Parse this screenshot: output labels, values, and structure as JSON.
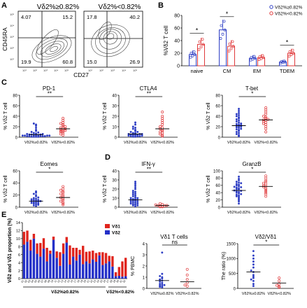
{
  "panel_labels": {
    "A": "A",
    "B": "B",
    "C": "C",
    "D": "D",
    "E": "E"
  },
  "flow": {
    "y_label": "CD45RA",
    "x_label": "CD27",
    "ticks": [
      "10¹",
      "10²",
      "10³",
      "10⁴",
      "10⁵"
    ],
    "plots": [
      {
        "title": "Vδ2%≥0.82%",
        "q_ul": "4.07",
        "q_ur": "15.2",
        "q_ll": "19.9",
        "q_lr": "60.8"
      },
      {
        "title": "Vδ2%<0.82%",
        "q_ul": "17.8",
        "q_ur": "40.2",
        "q_ll": "15.0",
        "q_lr": "26.9"
      }
    ]
  },
  "colors": {
    "high": "#2f3fc4",
    "low": "#e0393b",
    "bar_v1": "#e0251d",
    "bar_v2": "#2430c8"
  },
  "group_high": "Vδ2%≥0.82%",
  "group_low": "Vδ2%<0.82%",
  "sig": {
    "one": "*",
    "two": "**",
    "ns": "ns"
  },
  "chart_data": [
    {
      "type": "bar",
      "panel": "B",
      "ylabel": "%Vδ2 T cell",
      "ylim": [
        0,
        80
      ],
      "yticks": [
        0,
        20,
        40,
        60,
        80
      ],
      "categories": [
        "naive",
        "CM",
        "EM",
        "TDEM"
      ],
      "legend": [
        "Vδ2%≥0.82%",
        "Vδ2%<0.82%"
      ],
      "legend_position": "top-right",
      "series": [
        {
          "name": "Vδ2%≥0.82%",
          "values": [
            18,
            57,
            12,
            6
          ]
        },
        {
          "name": "Vδ2%<0.82%",
          "values": [
            34,
            31,
            13,
            20
          ]
        }
      ],
      "significance": [
        "*",
        "*",
        "",
        "*"
      ]
    },
    {
      "type": "scatter",
      "panel": "C",
      "title": "PD-1",
      "ylabel": "% Vδ2 T cell",
      "ylim": [
        0,
        80
      ],
      "yticks": [
        0,
        20,
        40,
        60,
        80
      ],
      "sig": "**",
      "groups": [
        {
          "name": "Vδ2%≥0.82%",
          "mean": 5,
          "values": [
            1,
            1,
            1,
            1,
            2,
            2,
            2,
            2,
            2,
            3,
            3,
            3,
            3,
            4,
            4,
            4,
            5,
            5,
            5,
            6,
            6,
            7,
            8,
            9,
            10,
            12,
            14,
            18,
            22,
            24,
            26
          ]
        },
        {
          "name": "Vδ2%<0.82%",
          "mean": 16,
          "values": [
            4,
            6,
            8,
            10,
            11,
            12,
            13,
            14,
            15,
            16,
            17,
            18,
            20,
            22,
            24,
            26,
            28,
            32,
            36
          ]
        }
      ]
    },
    {
      "type": "scatter",
      "panel": "C",
      "title": "CTLA4",
      "ylabel": "% Vδ2 T cell",
      "ylim": [
        0,
        40
      ],
      "yticks": [
        0,
        10,
        20,
        30,
        40
      ],
      "sig": "**",
      "groups": [
        {
          "name": "Vδ2%≥0.82%",
          "mean": 3,
          "values": [
            0.5,
            0.5,
            1,
            1,
            1,
            1.5,
            1.5,
            2,
            2,
            2,
            2.5,
            3,
            3,
            3,
            4,
            4,
            5,
            5,
            6,
            7,
            8,
            9,
            10,
            12,
            14
          ]
        },
        {
          "name": "Vδ2%<0.82%",
          "mean": 8,
          "values": [
            1,
            2,
            3,
            4,
            5,
            6,
            7,
            8,
            9,
            10,
            12,
            14,
            16,
            18,
            20,
            24
          ]
        }
      ]
    },
    {
      "type": "scatter",
      "panel": "C",
      "title": "T-bet",
      "ylabel": "% Vδ2 T cell",
      "ylim": [
        0,
        80
      ],
      "yticks": [
        0,
        20,
        40,
        60,
        80
      ],
      "sig": "*",
      "groups": [
        {
          "name": "Vδ2%≥0.82%",
          "mean": 22,
          "values": [
            2,
            4,
            6,
            8,
            10,
            12,
            14,
            15,
            16,
            18,
            19,
            20,
            21,
            22,
            23,
            24,
            25,
            26,
            28,
            30,
            32,
            34,
            36,
            38,
            40,
            42,
            44,
            46,
            50,
            54
          ]
        },
        {
          "name": "Vδ2%<0.82%",
          "mean": 33,
          "values": [
            10,
            16,
            20,
            24,
            26,
            28,
            30,
            32,
            33,
            34,
            36,
            38,
            40,
            44,
            48,
            52,
            56
          ]
        }
      ]
    },
    {
      "type": "scatter",
      "panel": "C",
      "title": "Eomes",
      "ylabel": "% Vδ2 T cell",
      "ylim": [
        0,
        60
      ],
      "yticks": [
        0,
        20,
        40,
        60
      ],
      "sig": "*",
      "groups": [
        {
          "name": "Vδ2%≥0.82%",
          "mean": 10,
          "values": [
            2,
            3,
            4,
            5,
            6,
            6,
            7,
            8,
            8,
            9,
            10,
            10,
            11,
            12,
            12,
            13,
            14,
            15,
            16,
            18,
            20,
            22,
            24,
            26
          ]
        },
        {
          "name": "Vδ2%<0.82%",
          "mean": 16,
          "values": [
            4,
            6,
            8,
            10,
            12,
            14,
            16,
            18,
            20,
            22,
            24,
            26,
            28,
            30,
            34
          ]
        }
      ]
    },
    {
      "type": "scatter",
      "panel": "D",
      "title": "IFN-γ",
      "ylabel": "% Vδ2 T cell",
      "ylim": [
        0,
        40
      ],
      "yticks": [
        0,
        10,
        20,
        30,
        40
      ],
      "sig": "**",
      "groups": [
        {
          "name": "Vδ2%≥0.82%",
          "mean": 8,
          "values": [
            1,
            2,
            2,
            3,
            3,
            4,
            4,
            5,
            5,
            6,
            6,
            7,
            7,
            8,
            8,
            9,
            9,
            10,
            10,
            11,
            12,
            13,
            14,
            15,
            16,
            17,
            18,
            20,
            22,
            24,
            26,
            28
          ]
        },
        {
          "name": "Vδ2%<0.82%",
          "mean": 2,
          "values": [
            0.5,
            0.5,
            1,
            1,
            1.5,
            2,
            2,
            2.5,
            3,
            4
          ]
        }
      ]
    },
    {
      "type": "scatter",
      "panel": "D",
      "title": "GranzB",
      "ylabel": "% Vδ2 T cell",
      "ylim": [
        0,
        100
      ],
      "yticks": [
        0,
        20,
        40,
        60,
        80,
        100
      ],
      "sig": "*",
      "groups": [
        {
          "name": "Vδ2%≥0.82%",
          "mean": 46,
          "values": [
            10,
            16,
            20,
            24,
            28,
            30,
            32,
            34,
            36,
            38,
            40,
            42,
            44,
            45,
            46,
            48,
            50,
            52,
            54,
            55,
            56,
            58,
            60,
            62,
            64,
            66,
            68,
            70,
            74,
            78,
            84
          ]
        },
        {
          "name": "Vδ2%<0.82%",
          "mean": 57,
          "values": [
            30,
            36,
            40,
            44,
            48,
            52,
            56,
            58,
            60,
            64,
            66,
            70,
            74,
            80,
            86
          ]
        }
      ]
    },
    {
      "type": "bar",
      "stacked": true,
      "panel": "E",
      "ylabel": "Vδ2 and Vδ1 proportion (%)",
      "ylim": [
        0,
        14
      ],
      "yticks": [
        0,
        2,
        4,
        6,
        8,
        10,
        12,
        14
      ],
      "legend": [
        "Vδ1",
        "Vδ2"
      ],
      "legend_position": "top-right",
      "categories": [
        "01",
        "02",
        "03",
        "04",
        "05",
        "06",
        "07",
        "08",
        "09",
        "10",
        "11",
        "12",
        "13",
        "14",
        "15",
        "16",
        "17",
        "18",
        "19",
        "20",
        "21",
        "22",
        "23",
        "24",
        "25",
        "26",
        "27",
        "28",
        "29",
        "30",
        "31",
        "32"
      ],
      "group_labels": [
        "Vδ2%≥0.82%",
        "Vδ2%<0.82%"
      ],
      "series": [
        {
          "name": "Vδ2",
          "values": [
            8.5,
            9.2,
            7.0,
            10.0,
            6.2,
            5.5,
            7.5,
            4.3,
            6.2,
            9.7,
            5.2,
            3.2,
            6.2,
            9.0,
            3.5,
            5.5,
            4.5,
            6.0,
            3.6,
            4.3,
            3.8,
            4.8,
            4.2,
            5.8,
            3.4,
            3.8,
            4.3,
            3.0,
            0.6,
            0.7,
            0.5,
            0.6
          ]
        },
        {
          "name": "Vδ1",
          "values": [
            3.2,
            2.8,
            2.7,
            1.2,
            2.6,
            3.4,
            2.6,
            3.4,
            0.8,
            0.8,
            1.6,
            3.4,
            2.6,
            1.4,
            4.8,
            2.2,
            3.2,
            1.2,
            4.6,
            2.4,
            3.0,
            2.2,
            2.2,
            0.8,
            3.2,
            2.6,
            1.4,
            2.6,
            1.0,
            2.2,
            3.8,
            4.6
          ]
        }
      ]
    },
    {
      "type": "scatter",
      "panel": "E",
      "title": "Vδ1 T cells",
      "ylabel": "% PBMC",
      "ylim": [
        0,
        4
      ],
      "yticks": [
        0,
        1,
        2,
        3,
        4
      ],
      "sig": "ns",
      "groups": [
        {
          "name": "Vδ2%≥0.82%",
          "mean": 0.7,
          "values": [
            0.1,
            0.15,
            0.2,
            0.25,
            0.3,
            0.35,
            0.4,
            0.5,
            0.6,
            0.7,
            0.8,
            0.9,
            1.0,
            1.1,
            1.3,
            3.2
          ]
        },
        {
          "name": "Vδ2%<0.82%",
          "mean": 0.6,
          "values": [
            0.2,
            0.3,
            0.5,
            0.8,
            1.2,
            1.7
          ]
        }
      ]
    },
    {
      "type": "scatter",
      "panel": "E",
      "title": "Vδ2/Vδ1",
      "ylabel": "The ratio (%)",
      "ylim": [
        0,
        1500
      ],
      "yticks": [
        0,
        500,
        1000,
        1500
      ],
      "sig": "*",
      "groups": [
        {
          "name": "Vδ2%≥0.82%",
          "mean": 550,
          "values": [
            80,
            150,
            250,
            300,
            350,
            400,
            450,
            550,
            600,
            700,
            800,
            900,
            1000,
            1100,
            1250
          ]
        },
        {
          "name": "Vδ2%<0.82%",
          "mean": 180,
          "values": [
            30,
            60,
            100,
            150,
            250,
            350
          ]
        }
      ]
    }
  ]
}
